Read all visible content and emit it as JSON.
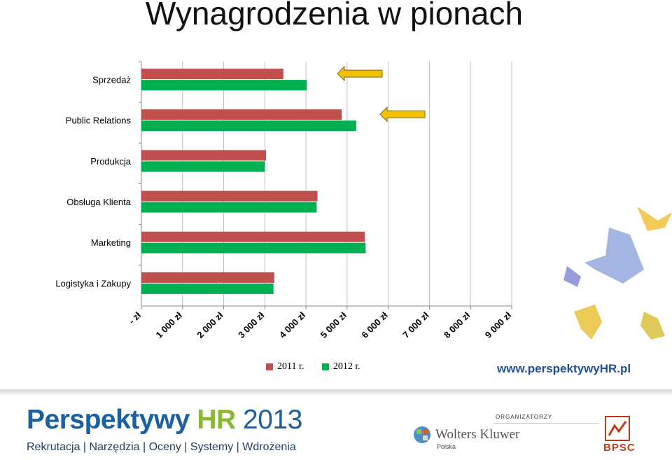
{
  "title": "Wynagrodzenia w pionach",
  "chart_data": {
    "type": "bar",
    "orientation": "horizontal",
    "categories": [
      "Sprzedaż",
      "Public Relations",
      "Produkcja",
      "Obsługa Klienta",
      "Marketing",
      "Logistyka i Zakupy"
    ],
    "series": [
      {
        "name": "2011 r.",
        "color": "#c0504d",
        "values": [
          3450,
          4870,
          3030,
          4280,
          5430,
          3230
        ]
      },
      {
        "name": "2012 r.",
        "color": "#00b050",
        "values": [
          4020,
          5220,
          3000,
          4260,
          5450,
          3210
        ]
      }
    ],
    "x_ticks": [
      "- zł",
      "1 000 zł",
      "2 000 zł",
      "3 000 zł",
      "4 000 zł",
      "5 000 zł",
      "6 000 zł",
      "7 000 zł",
      "8 000 zł",
      "9 000 zł"
    ],
    "xlim": [
      0,
      9000
    ],
    "grid": true,
    "legend": "bottom",
    "annotations": [
      {
        "type": "arrow",
        "points_to": "Sprzedaż",
        "color": "#f2c200"
      },
      {
        "type": "arrow",
        "points_to": "Public Relations",
        "color": "#f2c200"
      }
    ]
  },
  "url": "www.perspektywyHR.pl",
  "footer": {
    "brand_part1": "Perspektywy",
    "brand_part2": "HR",
    "brand_part3": "2013",
    "tagline": "Rekrutacja | Narzędzia | Oceny | Systemy | Wdrożenia",
    "organizers_label": "ORGANIZATORZY",
    "org1_name": "Wolters Kluwer",
    "org1_sub": "Polska",
    "org2_name": "BPSC"
  }
}
